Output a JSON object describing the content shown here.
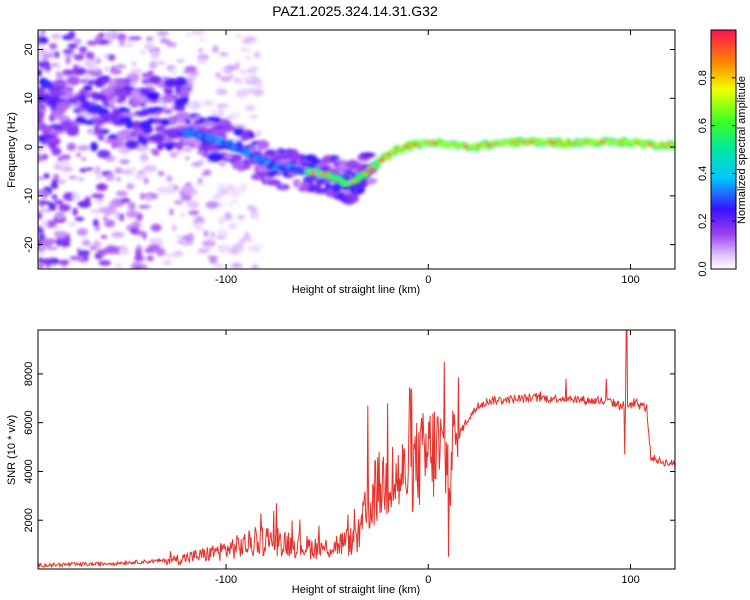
{
  "title": "PAZ1.2025.324.14.31.G32",
  "chart_data": [
    {
      "type": "heatmap",
      "title": "PAZ1.2025.324.14.31.G32",
      "xlabel": "Height of straight line (km)",
      "ylabel": "Frequency (Hz)",
      "xlim": [
        -193,
        122
      ],
      "ylim": [
        -25,
        24
      ],
      "xticks": [
        -100,
        0,
        100
      ],
      "yticks": [
        -20,
        -10,
        0,
        10,
        20
      ],
      "trace": {
        "x": [
          -118,
          -110,
          -100,
          -90,
          -82,
          -75,
          -68,
          -60,
          -52,
          -45,
          -40,
          -36,
          -30,
          -24,
          -18,
          -12,
          -6,
          0,
          10,
          20,
          30,
          40,
          50,
          60,
          70,
          80,
          90,
          100,
          110,
          122
        ],
        "y": [
          3,
          2,
          1,
          -1,
          -3,
          -4,
          -4.5,
          -5,
          -5.5,
          -6.5,
          -7.5,
          -7,
          -5,
          -3,
          -1,
          0,
          0.5,
          1,
          0.5,
          0,
          0.5,
          1,
          1,
          1,
          0.8,
          1,
          1,
          1,
          0.5,
          0.5
        ]
      },
      "colorbar": {
        "label": "Normalized spectral amplitude",
        "ticks": [
          "0.0",
          "0.2",
          "0.4",
          "0.6",
          "0.8"
        ],
        "range": [
          0,
          1
        ]
      }
    },
    {
      "type": "line",
      "xlabel": "Height of straight line (km)",
      "ylabel": "SNR (10 * v/v)",
      "xlim": [
        -193,
        122
      ],
      "ylim": [
        0,
        9800
      ],
      "xticks": [
        -100,
        0,
        100
      ],
      "yticks": [
        2000,
        4000,
        6000,
        8000
      ],
      "color": "#e8312a",
      "series": [
        {
          "name": "SNR",
          "x": [
            -193,
            -180,
            -165,
            -150,
            -140,
            -130,
            -120,
            -110,
            -100,
            -90,
            -80,
            -70,
            -60,
            -50,
            -45,
            -40,
            -35,
            -30,
            -25,
            -20,
            -15,
            -10,
            -5,
            0,
            5,
            10,
            15,
            20,
            25,
            30,
            40,
            50,
            60,
            70,
            80,
            90,
            95,
            100,
            105,
            108,
            110,
            115,
            122
          ],
          "y": [
            150,
            180,
            200,
            260,
            300,
            350,
            450,
            600,
            800,
            1000,
            1200,
            1100,
            900,
            850,
            1000,
            1100,
            1200,
            2400,
            3300,
            3700,
            3600,
            4000,
            4300,
            4700,
            4900,
            4200,
            5500,
            6200,
            6700,
            6900,
            6950,
            7000,
            7000,
            7000,
            6900,
            6850,
            6700,
            6750,
            6700,
            6600,
            4600,
            4400,
            4300
          ]
        }
      ],
      "spikes": [
        {
          "x": -75,
          "y": 2700
        },
        {
          "x": -30,
          "y": 6700
        },
        {
          "x": -20,
          "y": 6800
        },
        {
          "x": 8,
          "y": 8500
        },
        {
          "x": 10,
          "y": 500
        },
        {
          "x": 68,
          "y": 7800
        },
        {
          "x": 88,
          "y": 7800
        },
        {
          "x": 98,
          "y": 9800
        },
        {
          "x": 97,
          "y": 4700
        }
      ]
    }
  ]
}
